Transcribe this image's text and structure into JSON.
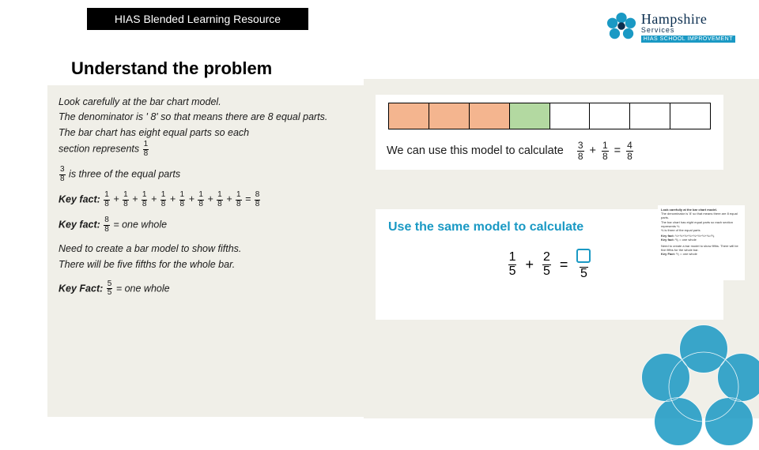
{
  "header": {
    "banner": "HIAS Blended Learning Resource"
  },
  "logo": {
    "main": "Hampshire",
    "sub": "Services",
    "band": "HIAS SCHOOL IMPROVEMENT",
    "flower_color": "#1a99c4",
    "center_color": "#0b2e4f"
  },
  "title": "Understand the problem",
  "left": {
    "p1a": "Look carefully at the bar chart model.",
    "p1b": "The denominator is ' 8' so that means there are 8 equal parts.",
    "p1c": "The bar chart has eight equal parts so each",
    "p1d_pre": "section represents ",
    "p2_pre": "",
    "p2_post": " is three of the equal parts",
    "kf1_label": "Key fact:",
    "kf2_label": "Key fact:",
    "kf2_post": " = one whole",
    "p3a": "Need to create a bar model to show  fifths.",
    "p3b": "There will be five fifths for the whole bar.",
    "kf3_label": "Key Fact:",
    "kf3_post": " = one whole",
    "eighths_terms": [
      "1",
      "8",
      "1",
      "8",
      "1",
      "8",
      "1",
      "8",
      "1",
      "8",
      "1",
      "8",
      "1",
      "8",
      "1",
      "8",
      "8",
      "8"
    ],
    "frac_1_8": {
      "n": "1",
      "d": "8"
    },
    "frac_3_8": {
      "n": "3",
      "d": "8"
    },
    "frac_8_8": {
      "n": "8",
      "d": "8"
    },
    "frac_5_5": {
      "n": "5",
      "d": "5"
    }
  },
  "model": {
    "segments": 8,
    "orange_count": 3,
    "green_count": 1,
    "colors": {
      "orange": "#f4b58f",
      "green": "#b3d9a1",
      "blank": "#ffffff",
      "border": "#000000"
    },
    "text_pre": "We can use this model to calculate",
    "eq": {
      "a": {
        "n": "3",
        "d": "8"
      },
      "b": {
        "n": "1",
        "d": "8"
      },
      "r": {
        "n": "4",
        "d": "8"
      }
    }
  },
  "prompt": {
    "title": "Use the same model  to calculate",
    "title_color": "#1a99c4",
    "eq": {
      "a": {
        "n": "1",
        "d": "5"
      },
      "b": {
        "n": "2",
        "d": "5"
      },
      "rd": "5"
    },
    "box_color": "#1a99c4"
  },
  "panel_bg": "#f0efe8",
  "decor": {
    "color": "#1a99c4"
  }
}
